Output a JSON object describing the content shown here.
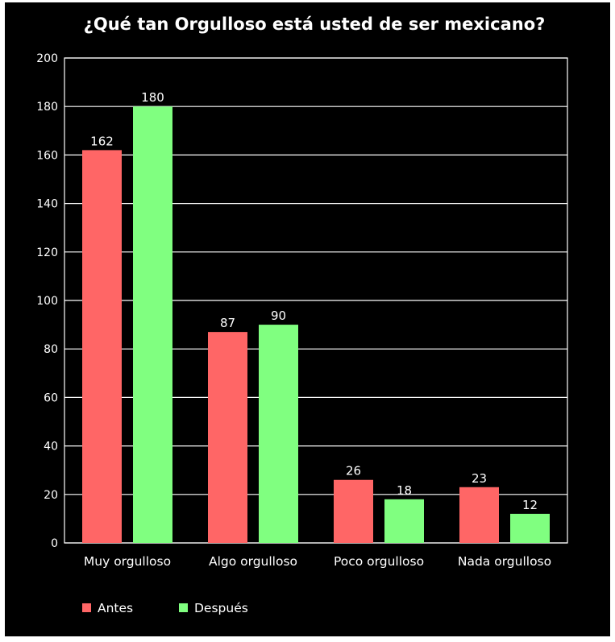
{
  "chart_data": {
    "type": "bar",
    "title": "¿Qué tan Orgulloso está usted de ser mexicano?",
    "xlabel": "",
    "ylabel": "",
    "categories": [
      "Muy orgulloso",
      "Algo orgulloso",
      "Poco orgulloso",
      "Nada orgulloso"
    ],
    "series": [
      {
        "name": "Antes",
        "values": [
          162,
          87,
          26,
          23
        ],
        "color": "#ff6666"
      },
      {
        "name": "Después",
        "values": [
          180,
          90,
          18,
          12
        ],
        "color": "#80ff80"
      }
    ],
    "ylim": [
      0,
      200
    ],
    "yticks": [
      0,
      20,
      40,
      60,
      80,
      100,
      120,
      140,
      160,
      180,
      200
    ],
    "grid": true,
    "legend_position": "bottom-left",
    "data_labels": true,
    "background_color": "#000000",
    "text_color": "#ffffff",
    "grid_color": "#ffffff"
  }
}
